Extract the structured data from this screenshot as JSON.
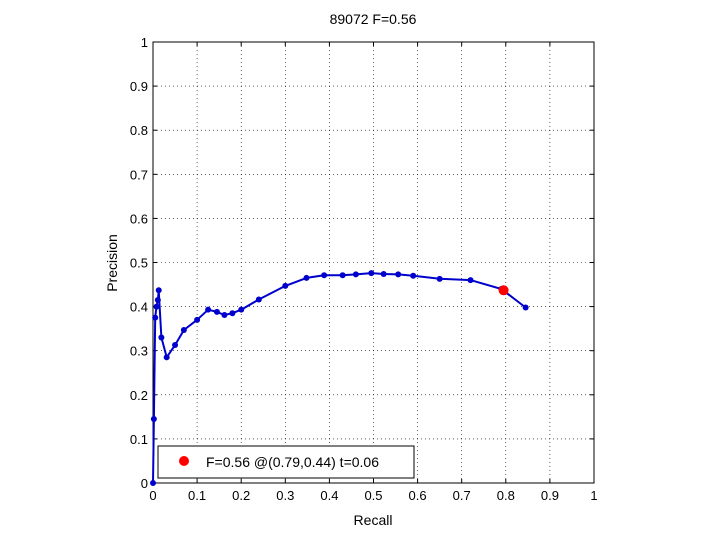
{
  "chart_data": {
    "type": "line",
    "title": "89072 F=0.56",
    "xlabel": "Recall",
    "ylabel": "Precision",
    "xlim": [
      0,
      1
    ],
    "ylim": [
      0,
      1
    ],
    "xticks": [
      "0",
      "0.1",
      "0.2",
      "0.3",
      "0.4",
      "0.5",
      "0.6",
      "0.7",
      "0.8",
      "0.9",
      "1"
    ],
    "yticks": [
      "0",
      "0.1",
      "0.2",
      "0.3",
      "0.4",
      "0.5",
      "0.6",
      "0.7",
      "0.8",
      "0.9",
      "1"
    ],
    "grid": true,
    "legend_position": "bottom-left",
    "series": [
      {
        "color": "#0000cc",
        "marker": "dot",
        "points": [
          [
            0.0,
            0.0
          ],
          [
            0.002,
            0.145
          ],
          [
            0.005,
            0.375
          ],
          [
            0.008,
            0.4
          ],
          [
            0.011,
            0.415
          ],
          [
            0.013,
            0.437
          ],
          [
            0.019,
            0.33
          ],
          [
            0.031,
            0.285
          ],
          [
            0.05,
            0.313
          ],
          [
            0.07,
            0.347
          ],
          [
            0.1,
            0.37
          ],
          [
            0.125,
            0.393
          ],
          [
            0.145,
            0.388
          ],
          [
            0.162,
            0.381
          ],
          [
            0.18,
            0.385
          ],
          [
            0.2,
            0.393
          ],
          [
            0.24,
            0.416
          ],
          [
            0.3,
            0.447
          ],
          [
            0.348,
            0.465
          ],
          [
            0.388,
            0.471
          ],
          [
            0.43,
            0.471
          ],
          [
            0.46,
            0.473
          ],
          [
            0.495,
            0.476
          ],
          [
            0.523,
            0.474
          ],
          [
            0.556,
            0.473
          ],
          [
            0.59,
            0.47
          ],
          [
            0.65,
            0.463
          ],
          [
            0.72,
            0.46
          ],
          [
            0.79,
            0.44
          ],
          [
            0.845,
            0.398
          ]
        ]
      }
    ],
    "best_point": {
      "x": 0.795,
      "y": 0.437,
      "color": "#ff0000"
    },
    "legend": {
      "label": "F=0.56 @(0.79,0.44) t=0.06"
    }
  }
}
